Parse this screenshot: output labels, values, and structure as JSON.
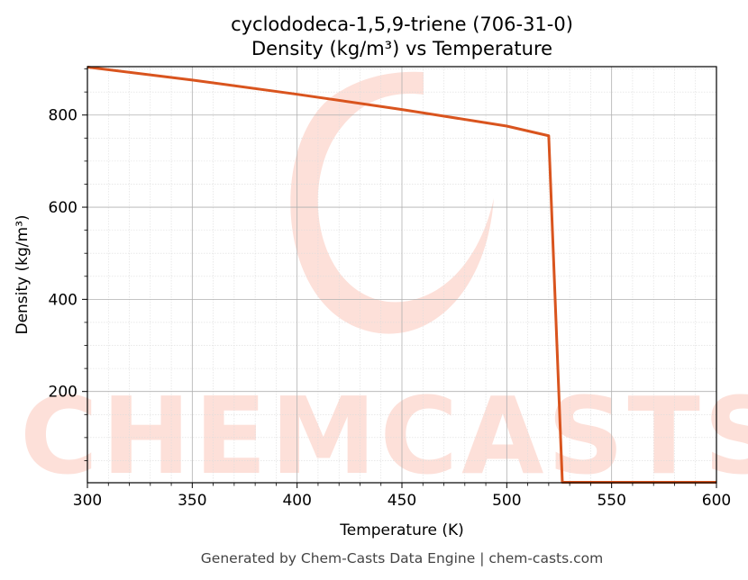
{
  "chart_data": {
    "type": "line",
    "title": "cyclododeca-1,5,9-triene (706-31-0)",
    "subtitle": "Density (kg/m³) vs Temperature",
    "xlabel": "Temperature (K)",
    "ylabel": "Density (kg/m³)",
    "xlim": [
      300,
      600
    ],
    "ylim": [
      2,
      905
    ],
    "x_ticks": [
      300,
      350,
      400,
      450,
      500,
      550,
      600
    ],
    "y_ticks": [
      200,
      400,
      600,
      800
    ],
    "grid": true,
    "legend": "none",
    "series": [
      {
        "color": "#d9541e",
        "x": [
          300,
          350,
          400,
          450,
          500,
          520,
          526.5,
          600
        ],
        "y": [
          904,
          876,
          845,
          812,
          776,
          755,
          3,
          3
        ]
      }
    ],
    "watermark": "CHEMCASTS",
    "watermark_color": "#fde0d9"
  },
  "footer": "Generated by Chem-Casts Data Engine | chem-casts.com"
}
